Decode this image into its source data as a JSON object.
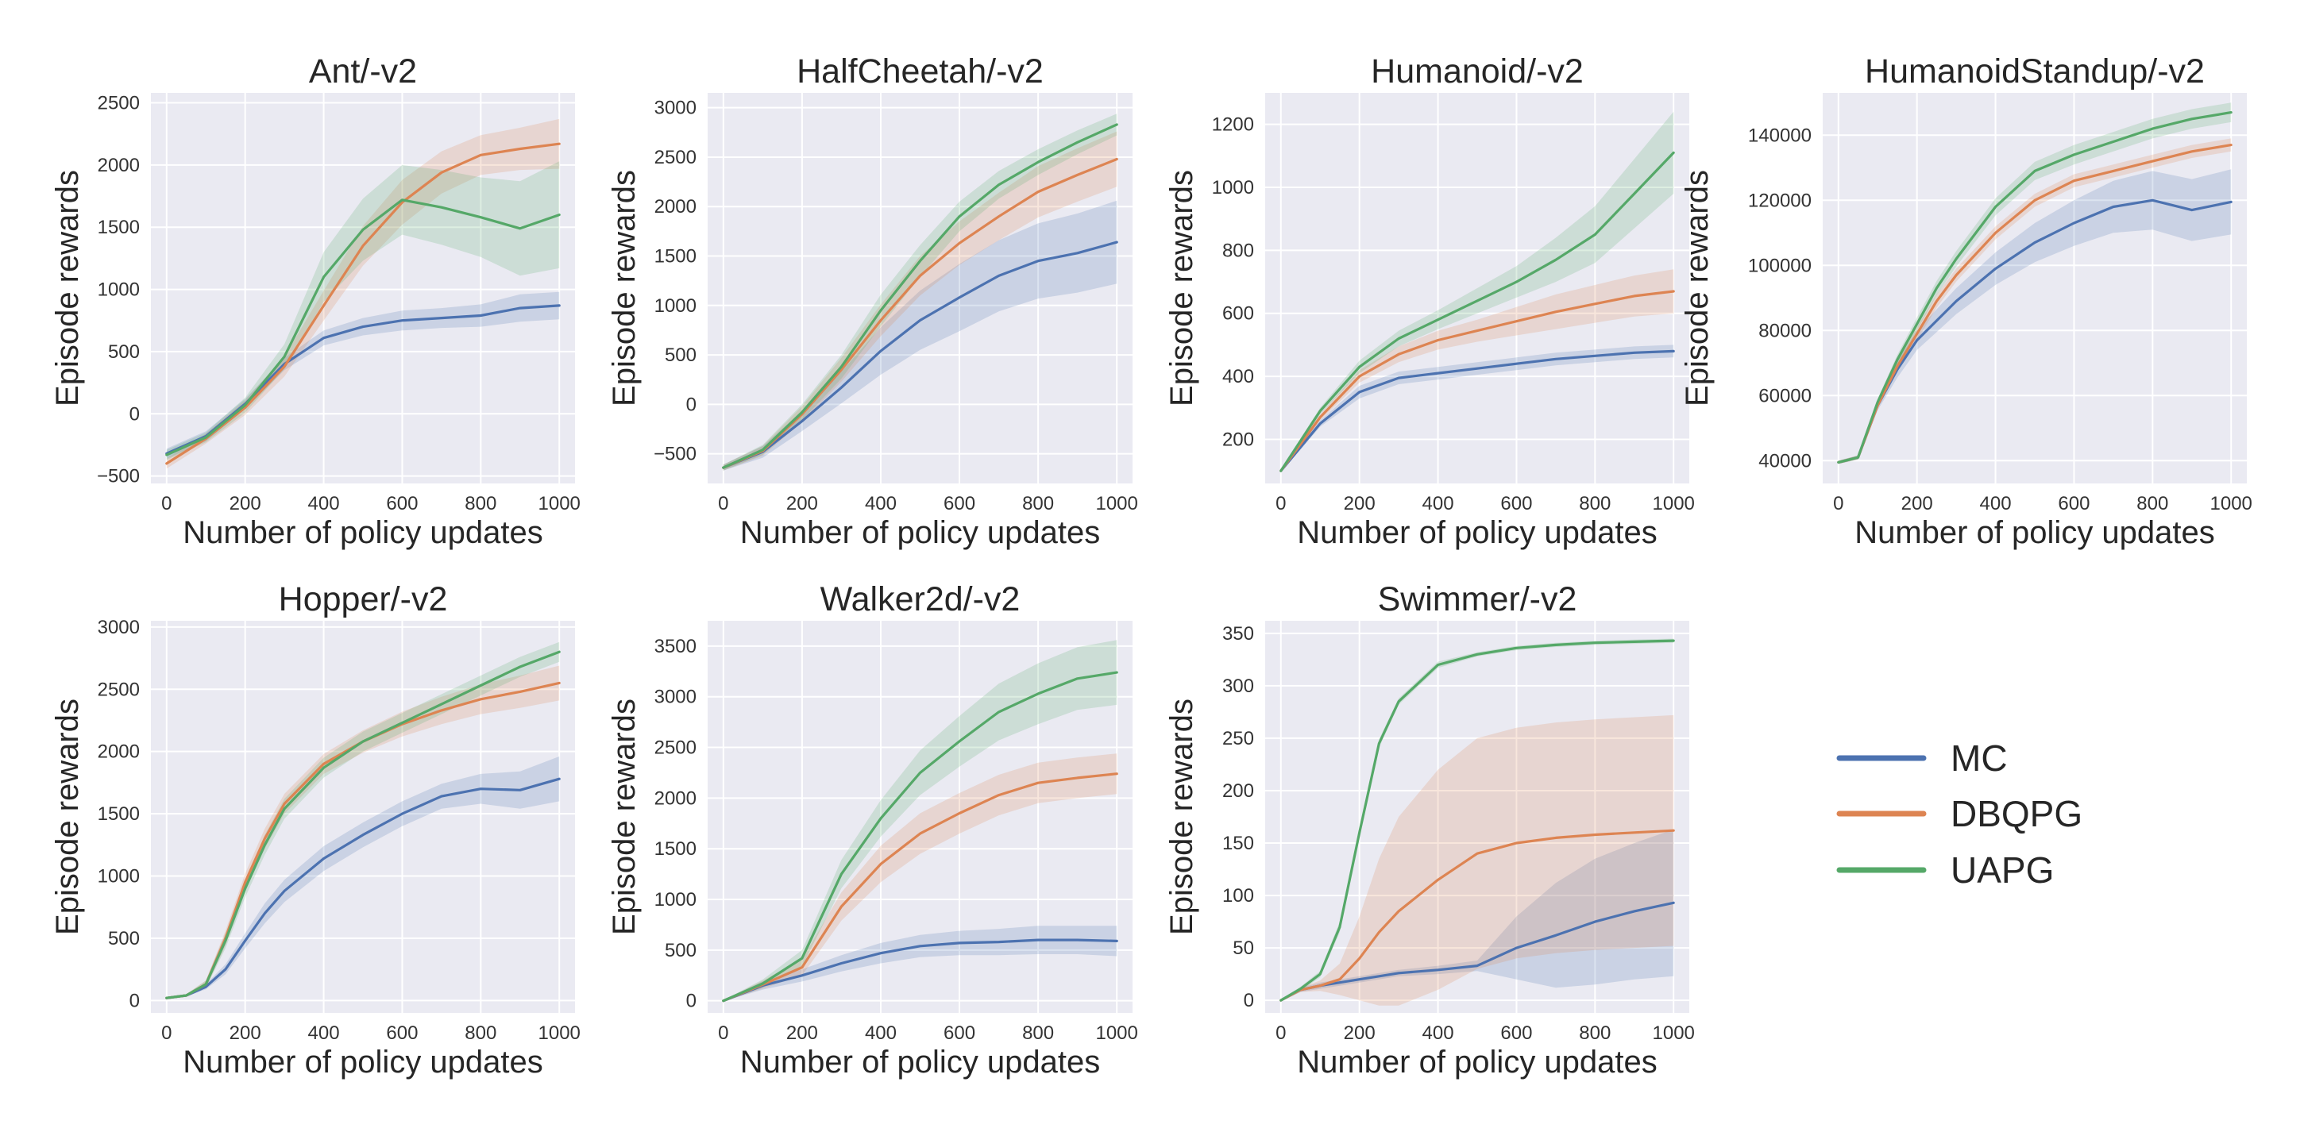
{
  "figure": {
    "legend": [
      {
        "name": "MC",
        "color": "#4c72b0"
      },
      {
        "name": "DBQPG",
        "color": "#dd8452"
      },
      {
        "name": "UAPG",
        "color": "#55a868"
      }
    ]
  },
  "chart_data": [
    {
      "type": "line",
      "title": "Ant/-v2",
      "xlabel": "Number of policy updates",
      "ylabel": "Episode rewards",
      "xlim": [
        -40,
        1040
      ],
      "ylim": [
        -560,
        2580
      ],
      "xticks": [
        0,
        200,
        400,
        600,
        800,
        1000
      ],
      "yticks": [
        -500,
        0,
        500,
        1000,
        1500,
        2000,
        2500
      ],
      "x": [
        0,
        100,
        200,
        300,
        400,
        500,
        600,
        700,
        800,
        900,
        1000
      ],
      "series": [
        {
          "name": "MC",
          "values": [
            -320,
            -180,
            80,
            400,
            610,
            700,
            750,
            770,
            790,
            850,
            870
          ],
          "band": [
            40,
            40,
            40,
            50,
            60,
            70,
            80,
            80,
            90,
            110,
            110
          ]
        },
        {
          "name": "DBQPG",
          "values": [
            -400,
            -200,
            50,
            380,
            870,
            1350,
            1700,
            1940,
            2080,
            2130,
            2170
          ],
          "band": [
            40,
            40,
            60,
            80,
            120,
            160,
            180,
            170,
            160,
            170,
            200
          ]
        },
        {
          "name": "UAPG",
          "values": [
            -330,
            -190,
            70,
            460,
            1100,
            1480,
            1720,
            1660,
            1580,
            1490,
            1600
          ],
          "band": [
            40,
            40,
            60,
            100,
            200,
            250,
            280,
            300,
            320,
            380,
            430
          ]
        }
      ]
    },
    {
      "type": "line",
      "title": "HalfCheetah/-v2",
      "xlabel": "Number of policy updates",
      "ylabel": "Episode rewards",
      "xlim": [
        -40,
        1040
      ],
      "ylim": [
        -800,
        3150
      ],
      "xticks": [
        0,
        200,
        400,
        600,
        800,
        1000
      ],
      "yticks": [
        -500,
        0,
        500,
        1000,
        1500,
        2000,
        2500,
        3000
      ],
      "x": [
        0,
        100,
        200,
        300,
        400,
        500,
        600,
        700,
        800,
        900,
        1000
      ],
      "series": [
        {
          "name": "MC",
          "values": [
            -640,
            -480,
            -170,
            170,
            540,
            850,
            1080,
            1300,
            1450,
            1530,
            1640
          ],
          "band": [
            30,
            60,
            100,
            160,
            240,
            300,
            340,
            360,
            380,
            400,
            420
          ]
        },
        {
          "name": "DBQPG",
          "values": [
            -640,
            -470,
            -100,
            350,
            850,
            1300,
            1630,
            1900,
            2150,
            2320,
            2480
          ],
          "band": [
            30,
            50,
            80,
            120,
            160,
            200,
            220,
            240,
            260,
            270,
            280
          ]
        },
        {
          "name": "UAPG",
          "values": [
            -640,
            -460,
            -80,
            380,
            950,
            1450,
            1900,
            2220,
            2450,
            2650,
            2830
          ],
          "band": [
            30,
            50,
            80,
            120,
            160,
            160,
            150,
            140,
            130,
            120,
            110
          ]
        }
      ]
    },
    {
      "type": "line",
      "title": "Humanoid/-v2",
      "xlabel": "Number of policy updates",
      "ylabel": "Episode rewards",
      "xlim": [
        -40,
        1040
      ],
      "ylim": [
        60,
        1300
      ],
      "xticks": [
        0,
        200,
        400,
        600,
        800,
        1000
      ],
      "yticks": [
        200,
        400,
        600,
        800,
        1000,
        1200
      ],
      "x": [
        0,
        100,
        200,
        300,
        400,
        500,
        600,
        700,
        800,
        900,
        1000
      ],
      "series": [
        {
          "name": "MC",
          "values": [
            100,
            250,
            350,
            395,
            410,
            425,
            440,
            455,
            465,
            475,
            480
          ],
          "band": [
            5,
            10,
            20,
            20,
            20,
            20,
            20,
            20,
            20,
            20,
            20
          ]
        },
        {
          "name": "DBQPG",
          "values": [
            100,
            270,
            400,
            470,
            515,
            545,
            575,
            605,
            630,
            655,
            670
          ],
          "band": [
            5,
            10,
            20,
            25,
            30,
            35,
            45,
            55,
            60,
            65,
            70
          ]
        },
        {
          "name": "UAPG",
          "values": [
            100,
            290,
            430,
            520,
            580,
            640,
            700,
            770,
            850,
            980,
            1110
          ],
          "band": [
            5,
            10,
            20,
            25,
            30,
            40,
            50,
            70,
            90,
            110,
            130
          ]
        }
      ]
    },
    {
      "type": "line",
      "title": "HumanoidStandup/-v2",
      "xlabel": "Number of policy updates",
      "ylabel": "Episode rewards",
      "xlim": [
        -40,
        1040
      ],
      "ylim": [
        33000,
        153000
      ],
      "xticks": [
        0,
        200,
        400,
        600,
        800,
        1000
      ],
      "yticks": [
        40000,
        60000,
        80000,
        100000,
        120000,
        140000
      ],
      "x": [
        0,
        50,
        100,
        150,
        200,
        250,
        300,
        400,
        500,
        600,
        700,
        800,
        900,
        1000
      ],
      "series": [
        {
          "name": "MC",
          "values": [
            39500,
            41000,
            57000,
            68000,
            77000,
            83000,
            89000,
            99000,
            107000,
            113000,
            118000,
            120000,
            117000,
            119500
          ],
          "band": [
            500,
            600,
            1500,
            2500,
            3000,
            3500,
            4000,
            5000,
            6000,
            7000,
            8000,
            9000,
            9500,
            10000
          ]
        },
        {
          "name": "DBQPG",
          "values": [
            39500,
            41000,
            57000,
            69000,
            79000,
            89000,
            97000,
            110000,
            120000,
            126000,
            129000,
            132000,
            135000,
            137000
          ],
          "band": [
            500,
            600,
            1000,
            1500,
            2000,
            2000,
            2000,
            2000,
            2000,
            2000,
            2000,
            2000,
            2000,
            2000
          ]
        },
        {
          "name": "UAPG",
          "values": [
            39500,
            41000,
            58000,
            71000,
            82000,
            93000,
            102000,
            118000,
            129000,
            134000,
            138000,
            142000,
            145000,
            147000
          ],
          "band": [
            500,
            600,
            1000,
            1500,
            2000,
            2200,
            2400,
            2600,
            2800,
            3000,
            3000,
            3000,
            3000,
            3000
          ]
        }
      ]
    },
    {
      "type": "line",
      "title": "Hopper/-v2",
      "xlabel": "Number of policy updates",
      "ylabel": "Episode rewards",
      "xlim": [
        -40,
        1040
      ],
      "ylim": [
        -100,
        3050
      ],
      "xticks": [
        0,
        200,
        400,
        600,
        800,
        1000
      ],
      "yticks": [
        0,
        500,
        1000,
        1500,
        2000,
        2500,
        3000
      ],
      "x": [
        0,
        50,
        100,
        150,
        200,
        250,
        300,
        400,
        500,
        600,
        700,
        800,
        900,
        1000
      ],
      "series": [
        {
          "name": "MC",
          "values": [
            20,
            40,
            110,
            250,
            480,
            700,
            880,
            1140,
            1330,
            1500,
            1640,
            1700,
            1690,
            1780
          ],
          "band": [
            5,
            10,
            20,
            40,
            60,
            80,
            90,
            100,
            100,
            100,
            100,
            120,
            150,
            180
          ]
        },
        {
          "name": "DBQPG",
          "values": [
            20,
            40,
            130,
            500,
            950,
            1300,
            1580,
            1900,
            2080,
            2220,
            2330,
            2420,
            2480,
            2550
          ],
          "band": [
            5,
            10,
            30,
            60,
            70,
            80,
            80,
            80,
            90,
            100,
            110,
            120,
            130,
            140
          ]
        },
        {
          "name": "UAPG",
          "values": [
            20,
            40,
            130,
            480,
            900,
            1250,
            1540,
            1870,
            2080,
            2230,
            2380,
            2530,
            2680,
            2800
          ],
          "band": [
            5,
            10,
            30,
            60,
            70,
            80,
            80,
            80,
            80,
            80,
            80,
            80,
            80,
            80
          ]
        }
      ]
    },
    {
      "type": "line",
      "title": "Walker2d/-v2",
      "xlabel": "Number of policy updates",
      "ylabel": "Episode rewards",
      "xlim": [
        -40,
        1040
      ],
      "ylim": [
        -120,
        3750
      ],
      "xticks": [
        0,
        200,
        400,
        600,
        800,
        1000
      ],
      "yticks": [
        0,
        500,
        1000,
        1500,
        2000,
        2500,
        3000,
        3500
      ],
      "x": [
        0,
        100,
        200,
        300,
        400,
        500,
        600,
        700,
        800,
        900,
        1000
      ],
      "series": [
        {
          "name": "MC",
          "values": [
            0,
            150,
            250,
            370,
            470,
            540,
            570,
            580,
            600,
            600,
            590
          ],
          "band": [
            5,
            40,
            60,
            80,
            100,
            110,
            120,
            130,
            140,
            140,
            150
          ]
        },
        {
          "name": "DBQPG",
          "values": [
            0,
            160,
            330,
            930,
            1350,
            1650,
            1850,
            2030,
            2150,
            2200,
            2240
          ],
          "band": [
            5,
            40,
            80,
            140,
            180,
            200,
            200,
            200,
            200,
            200,
            200
          ]
        },
        {
          "name": "UAPG",
          "values": [
            0,
            170,
            420,
            1250,
            1800,
            2250,
            2560,
            2850,
            3030,
            3180,
            3240
          ],
          "band": [
            5,
            40,
            80,
            140,
            180,
            220,
            250,
            280,
            300,
            310,
            320
          ]
        }
      ]
    },
    {
      "type": "line",
      "title": "Swimmer/-v2",
      "xlabel": "Number of policy updates",
      "ylabel": "Episode rewards",
      "xlim": [
        -40,
        1040
      ],
      "ylim": [
        -12,
        362
      ],
      "xticks": [
        0,
        200,
        400,
        600,
        800,
        1000
      ],
      "yticks": [
        0,
        50,
        100,
        150,
        200,
        250,
        300,
        350
      ],
      "x": [
        0,
        50,
        100,
        150,
        200,
        250,
        300,
        400,
        500,
        600,
        700,
        800,
        900,
        1000
      ],
      "series": [
        {
          "name": "MC",
          "values": [
            0,
            10,
            14,
            17,
            20,
            23,
            26,
            29,
            33,
            50,
            62,
            75,
            85,
            93
          ],
          "band": [
            1,
            2,
            3,
            3,
            3,
            3,
            3,
            4,
            5,
            30,
            50,
            60,
            65,
            70
          ]
        },
        {
          "name": "DBQPG",
          "values": [
            0,
            10,
            14,
            20,
            40,
            65,
            85,
            115,
            140,
            150,
            155,
            158,
            160,
            162
          ],
          "band": [
            1,
            2,
            5,
            15,
            40,
            70,
            90,
            105,
            110,
            110,
            110,
            110,
            110,
            110
          ]
        },
        {
          "name": "UAPG",
          "values": [
            0,
            11,
            25,
            70,
            160,
            245,
            285,
            320,
            330,
            336,
            339,
            341,
            342,
            343
          ],
          "band": [
            1,
            2,
            3,
            5,
            5,
            4,
            3,
            3,
            2,
            2,
            2,
            2,
            2,
            2
          ]
        }
      ]
    }
  ]
}
